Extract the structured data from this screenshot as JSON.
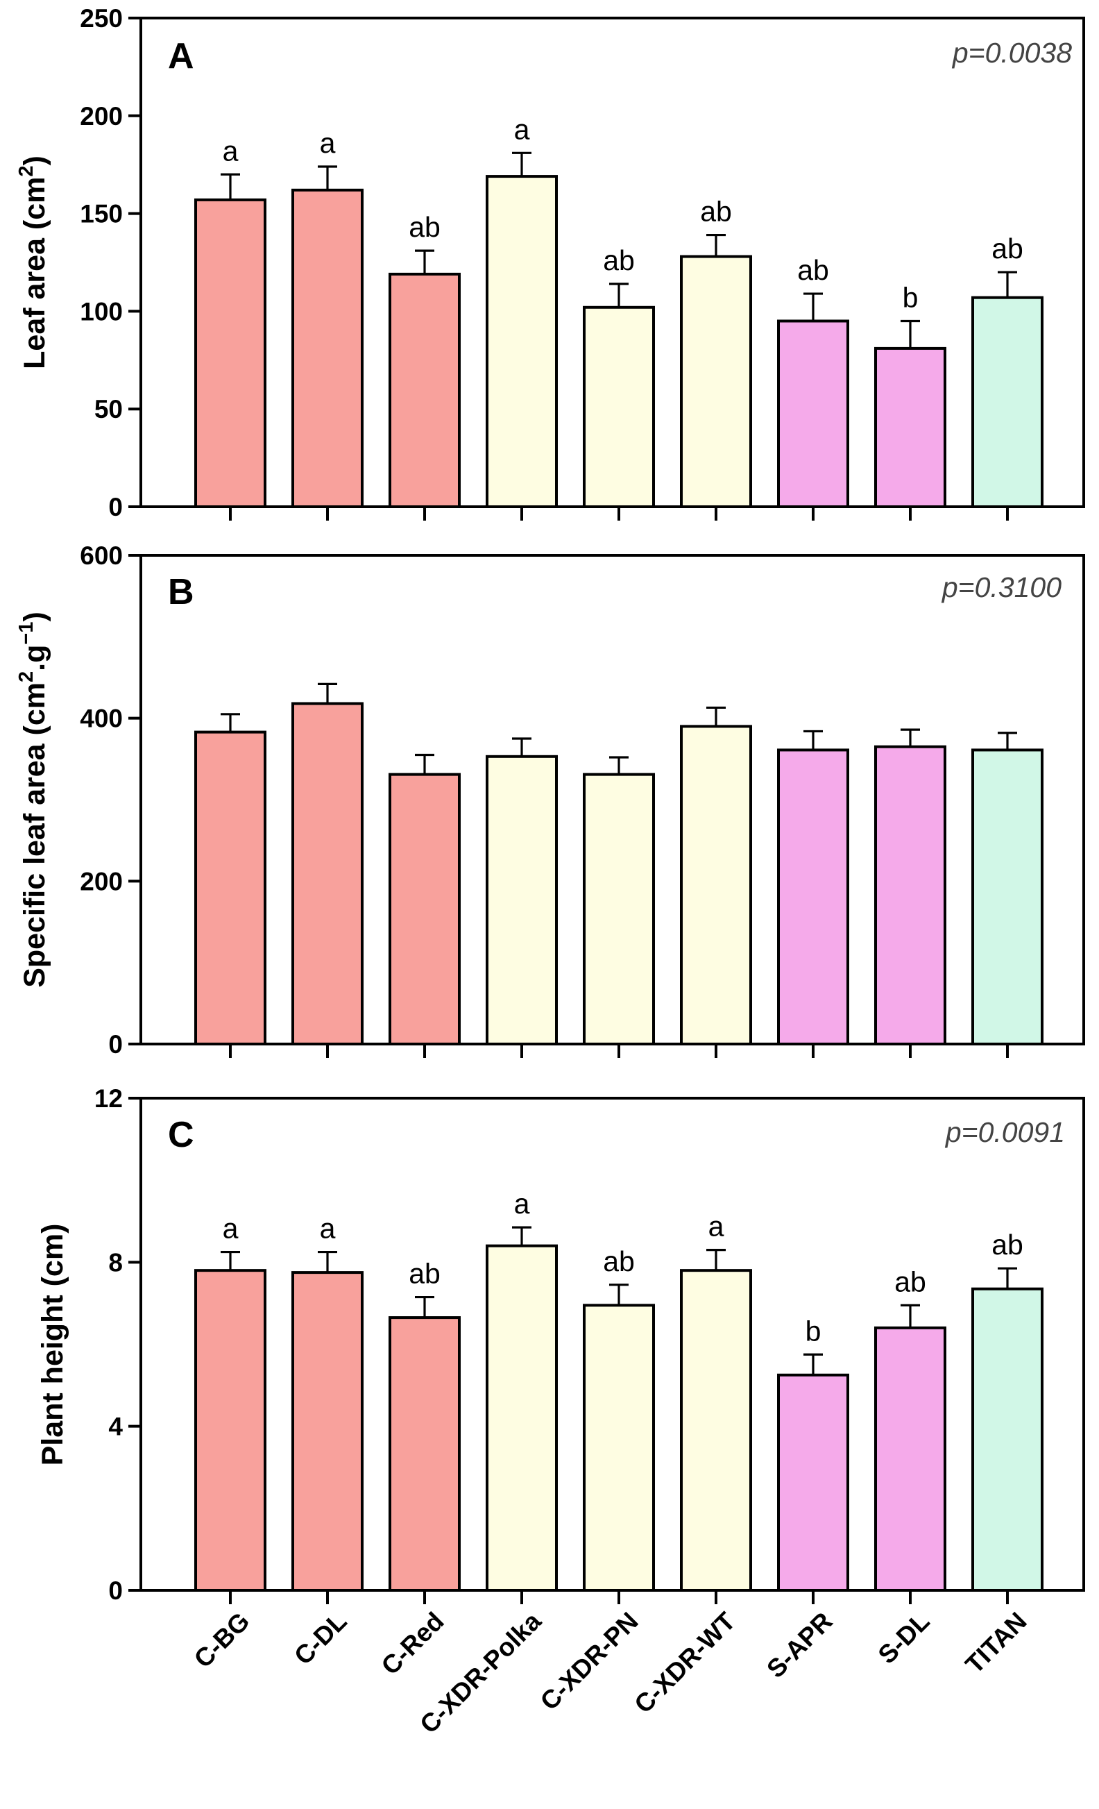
{
  "categories": [
    "C-BG",
    "C-DL",
    "C-Red",
    "C-XDR-Polka",
    "C-XDR-PN",
    "C-XDR-WT",
    "S-APR",
    "S-DL",
    "TITAN"
  ],
  "colors": {
    "C-BG": "#f8a19c",
    "C-DL": "#f8a19c",
    "C-Red": "#f8a19c",
    "C-XDR-Polka": "#fefde2",
    "C-XDR-PN": "#fefde2",
    "C-XDR-WT": "#fefde2",
    "S-APR": "#f5aaea",
    "S-DL": "#f5aaea",
    "TITAN": "#d1f7e7"
  },
  "chart_data": [
    {
      "type": "bar",
      "panel": "A",
      "p_value": "p=0.0038",
      "ylabel_main": "Leaf area (cm",
      "ylabel_sup": "2",
      "ylabel_end": ")",
      "ylim": [
        0,
        250
      ],
      "yticks": [
        0,
        50,
        100,
        150,
        200,
        250
      ],
      "values": [
        157,
        162,
        119,
        169,
        102,
        128,
        95,
        81,
        107
      ],
      "errors": [
        13,
        12,
        12,
        12,
        12,
        11,
        14,
        14,
        13
      ],
      "letters": [
        "a",
        "a",
        "ab",
        "a",
        "ab",
        "ab",
        "ab",
        "b",
        "ab"
      ]
    },
    {
      "type": "bar",
      "panel": "B",
      "p_value": "p=0.3100",
      "ylabel_main": "Specific leaf area (cm",
      "ylabel_sup": "2",
      "ylabel_mid": ".g",
      "ylabel_sup2": "−1",
      "ylabel_end": ")",
      "ylim": [
        0,
        600
      ],
      "yticks": [
        0,
        200,
        400,
        600
      ],
      "values": [
        383,
        418,
        331,
        353,
        331,
        390,
        361,
        365,
        361
      ],
      "errors": [
        22,
        24,
        24,
        22,
        21,
        23,
        23,
        21,
        21
      ],
      "letters": []
    },
    {
      "type": "bar",
      "panel": "C",
      "p_value": "p=0.0091",
      "ylabel_main": "Plant height (cm)",
      "ylim": [
        0,
        12
      ],
      "yticks": [
        0,
        4,
        8,
        12
      ],
      "values": [
        7.8,
        7.75,
        6.65,
        8.4,
        6.95,
        7.8,
        5.25,
        6.4,
        7.35
      ],
      "errors": [
        0.45,
        0.5,
        0.5,
        0.45,
        0.5,
        0.5,
        0.5,
        0.55,
        0.5
      ],
      "letters": [
        "a",
        "a",
        "ab",
        "a",
        "ab",
        "a",
        "b",
        "ab",
        "ab"
      ]
    }
  ]
}
